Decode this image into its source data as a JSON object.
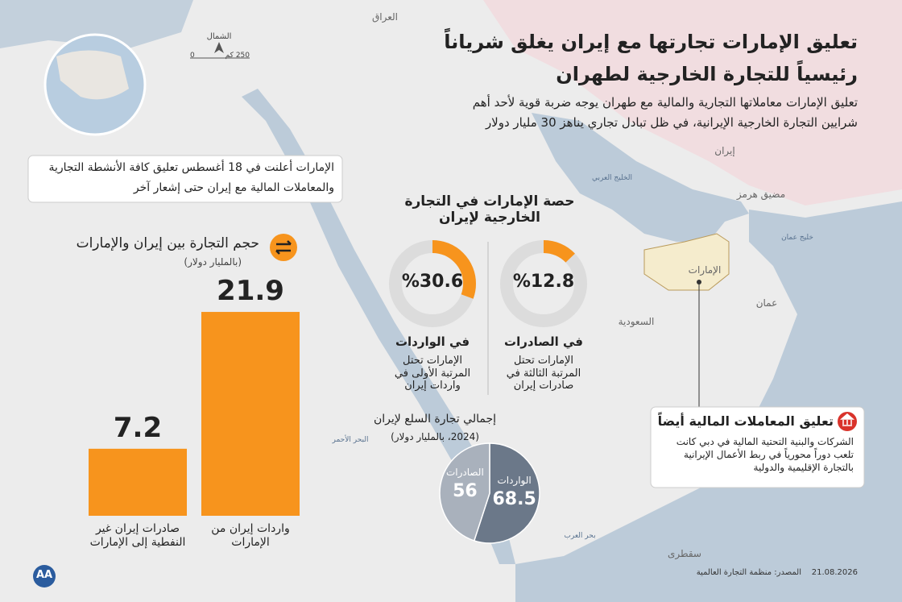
{
  "title_lines": [
    "تعليق الإمارات تجارتها مع إيران يغلق شرياناً",
    "رئيسياً للتجارة الخارجية لطهران"
  ],
  "subtitle_lines": [
    "تعليق الإمارات معاملاتها التجارية والمالية مع طهران يوجه ضربة قوية لأحد أهم",
    "شرايين التجارة الخارجية الإيرانية، في ظل تبادل تجاري يناهز 30 مليار دولار"
  ],
  "announcement_lines": [
    "الإمارات أعلنت في 18 أغسطس تعليق كافة الأنشطة التجارية",
    "والمعاملات المالية مع إيران حتى إشعار آخر"
  ],
  "map": {
    "labels": [
      "العراق",
      "إيران",
      "الخليج العربي",
      "مضيق هرمز",
      "خليج عمان",
      "الإمارات",
      "عمان",
      "السعودية",
      "البحر الأحمر",
      "بحر العرب",
      "سقطرى"
    ],
    "compass": "الشمال",
    "scale": [
      "0",
      "250 كم"
    ]
  },
  "chart_data": [
    {
      "type": "bar",
      "title": "حجم التجارة بين إيران والإمارات",
      "subtitle": "(بالمليار دولار)",
      "categories": [
        "صادرات إيران غير النفطية إلى الإمارات",
        "واردات إيران من الإمارات"
      ],
      "values": [
        7.2,
        21.9
      ],
      "color": "#f7941d"
    },
    {
      "type": "donut",
      "title": "حصة الإمارات في التجارة الخارجية لإيران",
      "categories": [
        "في الواردات",
        "في الصادرات"
      ],
      "values": [
        30.6,
        12.8
      ],
      "value_labels": [
        "%30.6",
        "%12.8"
      ],
      "notes": [
        "الإمارات تحتل المرتبة الأولى في واردات إيران",
        "الإمارات تحتل المرتبة الثالثة في صادرات إيران"
      ],
      "color": "#f7941d",
      "track_color": "#dcdcdc"
    },
    {
      "type": "pie",
      "title": "إجمالي تجارة السلع لإيران",
      "subtitle": "(2024، بالمليار دولار)",
      "categories": [
        "الواردات",
        "الصادرات"
      ],
      "values": [
        68.5,
        56
      ],
      "colors": [
        "#6b7889",
        "#a9b1bc"
      ]
    }
  ],
  "finance": {
    "title": "تعليق المعاملات المالية أيضاً",
    "text": "الشركات والبنية التحتية المالية في دبي كانت تلعب دوراً محورياً في ربط الأعمال الإيرانية بالتجارة الإقليمية والدولية"
  },
  "footer": {
    "source": "المصدر: منظمة التجارة العالمية",
    "date": "21.08.2026",
    "logo": "AA"
  }
}
